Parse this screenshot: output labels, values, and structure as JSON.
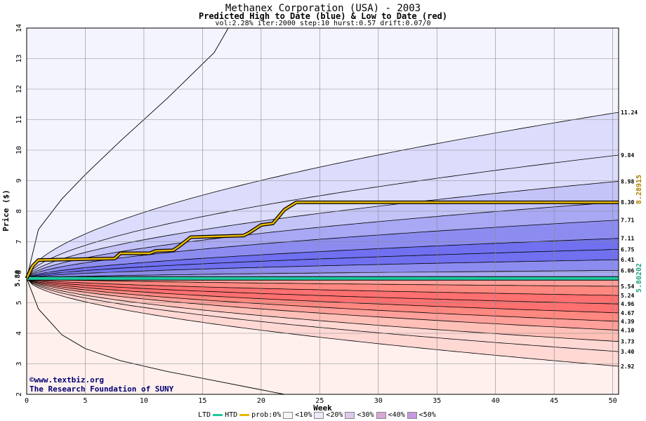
{
  "header": {
    "title": "Methanex Corporation (USA) - 2003",
    "subtitle": "Predicted High to Date (blue) &  Low to Date (red)",
    "params": "vol:2.28% iter:2000 step:10 hurst:0.57 drift:0.07/0"
  },
  "credits": {
    "site": "©www.textbiz.org",
    "org": "The Research Foundation of SUNY"
  },
  "legend": {
    "ltd": "LTD",
    "htd": "HTD",
    "prob": "prob:0%",
    "b10": "<10%",
    "b20": "<20%",
    "b30": "<30%",
    "b40": "<40%",
    "b50": "<50%"
  },
  "colors": {
    "ltd_line": "#20c8a0",
    "htd_line": "#e8b800",
    "blue_bands": [
      "#f4f4ff",
      "#dcdcfc",
      "#c4c4f8",
      "#a8a8f4",
      "#8c8cf0",
      "#7070f0"
    ],
    "red_bands": [
      "#fff0ee",
      "#ffd8d4",
      "#ffc0b8",
      "#ffa09a",
      "#ff8880",
      "#ff7070"
    ],
    "ref_left": "#000000",
    "ref_right_high": "#b08000",
    "ref_right_low": "#20a080"
  },
  "chart_data": {
    "type": "area",
    "title": "Methanex Corporation (USA) - 2003",
    "xlabel": "Week",
    "ylabel": "Price ($)",
    "xlim": [
      0,
      50.5
    ],
    "ylim": [
      2,
      14
    ],
    "xticks": [
      0,
      5,
      10,
      15,
      20,
      25,
      30,
      35,
      40,
      45,
      50
    ],
    "yticks": [
      2,
      3,
      4,
      5,
      6,
      7,
      8,
      9,
      10,
      11,
      12,
      13,
      14
    ],
    "grid": true,
    "start_price_label": "5.80",
    "start_price": 5.8,
    "htd_final_label": "8.28915",
    "ltd_final_label": "5.80202",
    "high_envelope": [
      {
        "end": 6.06,
        "label": "6.06"
      },
      {
        "end": 6.41,
        "label": "6.41"
      },
      {
        "end": 6.75,
        "label": "6.75"
      },
      {
        "end": 7.11,
        "label": "7.11"
      },
      {
        "end": 7.71,
        "label": "7.71"
      },
      {
        "end": 8.3,
        "label": "8.30"
      },
      {
        "end": 8.98,
        "label": "8.98"
      },
      {
        "end": 9.84,
        "label": "9.84"
      },
      {
        "end": 11.24,
        "label": "11.24"
      }
    ],
    "low_envelope": [
      {
        "end": 5.54,
        "label": "5.54"
      },
      {
        "end": 5.24,
        "label": "5.24"
      },
      {
        "end": 4.96,
        "label": "4.96"
      },
      {
        "end": 4.67,
        "label": "4.67"
      },
      {
        "end": 4.39,
        "label": "4.39"
      },
      {
        "end": 4.1,
        "label": "4.10"
      },
      {
        "end": 3.73,
        "label": "3.73"
      },
      {
        "end": 3.4,
        "label": "3.40"
      },
      {
        "end": 2.92,
        "label": "2.92"
      }
    ],
    "outer_curves": [
      {
        "name": "max",
        "x": [
          0,
          1,
          3,
          5,
          8,
          12,
          16,
          17.2
        ],
        "y": [
          5.8,
          7.4,
          8.4,
          9.2,
          10.3,
          11.7,
          13.2,
          14
        ]
      },
      {
        "name": "min",
        "x": [
          0,
          1,
          3,
          5,
          8,
          12,
          16,
          20,
          22
        ],
        "y": [
          5.8,
          4.8,
          3.95,
          3.5,
          3.1,
          2.75,
          2.45,
          2.15,
          2.0
        ]
      }
    ],
    "htd_series": {
      "x": [
        0,
        0.5,
        1,
        7.5,
        8,
        10.5,
        11,
        12.5,
        13,
        13.5,
        14,
        18.5,
        19,
        20,
        21,
        22,
        23,
        50.5
      ],
      "y": [
        5.8,
        6.2,
        6.4,
        6.45,
        6.62,
        6.62,
        6.7,
        6.72,
        6.85,
        7.0,
        7.15,
        7.2,
        7.3,
        7.55,
        7.6,
        8.05,
        8.29,
        8.29
      ]
    },
    "ltd_series": {
      "x": [
        0,
        50.5
      ],
      "y": [
        5.8,
        5.8
      ]
    }
  }
}
